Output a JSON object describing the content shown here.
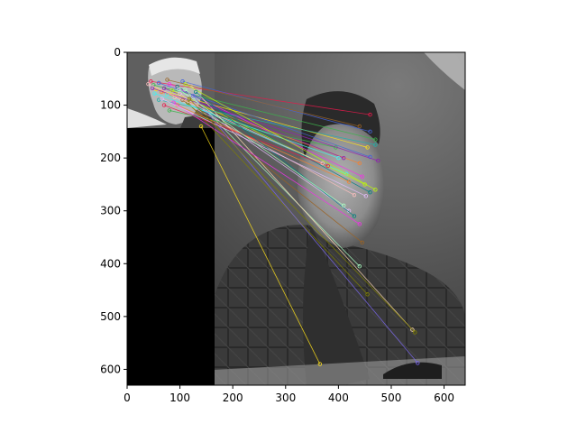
{
  "chart_data": {
    "type": "image",
    "xlim": [
      0,
      640
    ],
    "ylim": [
      630,
      0
    ],
    "xticks": [
      0,
      100,
      200,
      300,
      400,
      500,
      600
    ],
    "yticks": [
      0,
      100,
      200,
      300,
      400,
      500,
      600
    ],
    "x_tick_labels": [
      "0",
      "100",
      "200",
      "300",
      "400",
      "500",
      "600"
    ],
    "y_tick_labels": [
      "0",
      "100",
      "200",
      "300",
      "400",
      "500",
      "600"
    ],
    "grid": false,
    "inset_image": {
      "x_range": [
        0,
        165
      ],
      "y_range": [
        0,
        630
      ],
      "photo_y_range": [
        0,
        142
      ],
      "black_y_range": [
        142,
        630
      ]
    },
    "matches": [
      [
        45,
        55,
        460,
        118
      ],
      [
        50,
        62,
        470,
        165
      ],
      [
        55,
        70,
        455,
        180
      ],
      [
        60,
        58,
        460,
        198
      ],
      [
        65,
        75,
        440,
        210
      ],
      [
        70,
        68,
        410,
        200
      ],
      [
        75,
        80,
        415,
        230
      ],
      [
        80,
        60,
        445,
        235
      ],
      [
        85,
        72,
        450,
        250
      ],
      [
        90,
        85,
        430,
        270
      ],
      [
        95,
        65,
        460,
        265
      ],
      [
        100,
        78,
        420,
        300
      ],
      [
        105,
        90,
        445,
        360
      ],
      [
        110,
        70,
        440,
        405
      ],
      [
        115,
        95,
        455,
        458
      ],
      [
        120,
        62,
        540,
        525
      ],
      [
        125,
        82,
        550,
        588
      ],
      [
        60,
        90,
        470,
        175
      ],
      [
        70,
        100,
        380,
        215
      ],
      [
        80,
        110,
        395,
        180
      ],
      [
        140,
        140,
        365,
        590
      ],
      [
        105,
        55,
        460,
        150
      ],
      [
        95,
        100,
        420,
        245
      ],
      [
        48,
        68,
        475,
        205
      ],
      [
        52,
        78,
        400,
        200
      ],
      [
        88,
        95,
        440,
        325
      ],
      [
        110,
        60,
        470,
        260
      ],
      [
        40,
        60,
        370,
        210
      ],
      [
        130,
        75,
        430,
        310
      ],
      [
        66,
        88,
        452,
        272
      ],
      [
        76,
        52,
        440,
        140
      ],
      [
        98,
        70,
        410,
        290
      ],
      [
        118,
        88,
        545,
        530
      ]
    ]
  }
}
